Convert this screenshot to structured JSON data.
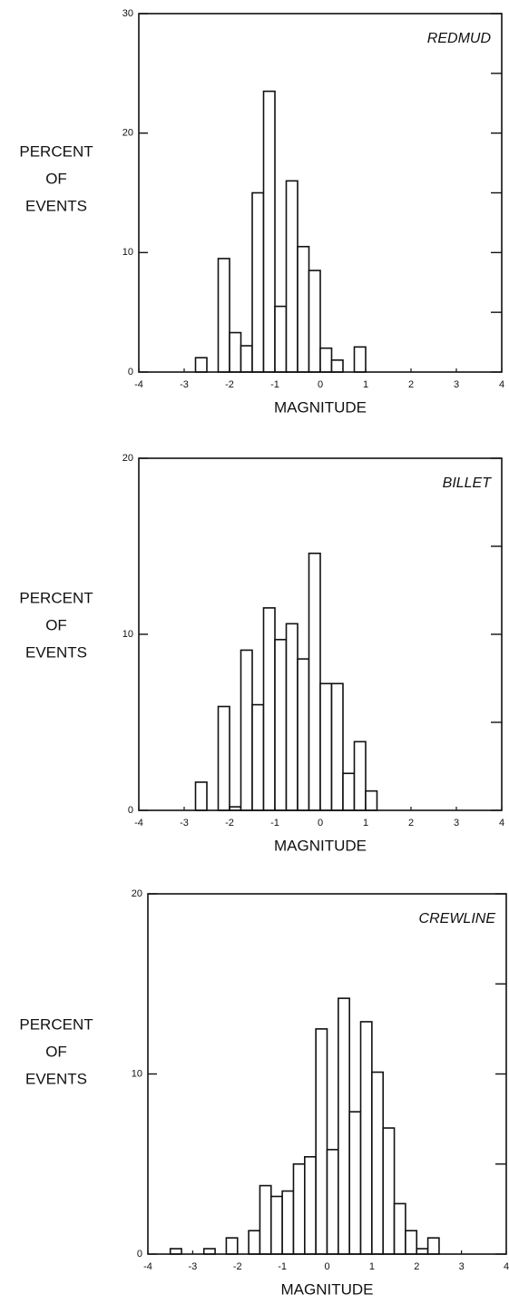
{
  "chart_data": [
    {
      "type": "histogram",
      "title": "REDMUD",
      "x_label": "MAGNITUDE",
      "y_label": [
        "PERCENT",
        "OF",
        "EVENTS"
      ],
      "bins": [
        -2.75,
        -2.5,
        -2.25,
        -2,
        -1.75,
        -1.5,
        -1.25,
        -1,
        -0.75,
        -0.5,
        -0.25,
        0,
        0.25,
        0.5,
        0.75,
        1
      ],
      "counts": [
        1.2,
        0,
        9.5,
        3.3,
        2.2,
        15,
        23.5,
        5.5,
        16,
        10.5,
        8.5,
        2.0,
        1.0,
        0,
        2.1
      ],
      "xlim": [
        -4,
        4
      ],
      "xticks": [
        -4,
        -3,
        -2,
        -1,
        0,
        1,
        2,
        3,
        4
      ],
      "ylim": [
        0,
        30
      ],
      "yticks": [
        0,
        10,
        20,
        30
      ],
      "minor_yticks": [
        5,
        15,
        25
      ],
      "color": "#ffffff"
    },
    {
      "type": "histogram",
      "title": "BILLET",
      "x_label": "MAGNITUDE",
      "y_label": [
        "PERCENT",
        "OF",
        "EVENTS"
      ],
      "bins": [
        -2.75,
        -2.5,
        -2.25,
        -2,
        -1.75,
        -1.5,
        -1.25,
        -1,
        -0.75,
        -0.5,
        -0.25,
        0,
        0.25,
        0.5,
        0.75,
        1,
        1.25
      ],
      "counts": [
        1.6,
        0,
        5.9,
        0.2,
        9.1,
        6,
        11.5,
        9.7,
        10.6,
        8.6,
        14.6,
        7.2,
        7.2,
        2.1,
        3.9,
        1.1
      ],
      "xlim": [
        -4,
        4
      ],
      "xticks": [
        -4,
        -3,
        -2,
        -1,
        0,
        1,
        2,
        3,
        4
      ],
      "ylim": [
        0,
        20
      ],
      "yticks": [
        0,
        10,
        20
      ],
      "minor_yticks": [
        5,
        15
      ],
      "color": "#ffffff"
    },
    {
      "type": "histogram",
      "title": "CREWLINE",
      "x_label": "MAGNITUDE",
      "y_label": [
        "PERCENT",
        "OF",
        "EVENTS"
      ],
      "bins": [
        -3.5,
        -3.25,
        -3,
        -2.75,
        -2.5,
        -2.25,
        -2,
        -1.75,
        -1.5,
        -1.25,
        -1,
        -0.75,
        -0.5,
        -0.25,
        0,
        0.25,
        0.5,
        0.75,
        1,
        1.25,
        1.5,
        1.75,
        2,
        2.25,
        2.5
      ],
      "counts": [
        0.3,
        0,
        0,
        0.3,
        0,
        0.9,
        0,
        1.3,
        3.8,
        3.2,
        3.5,
        5,
        5.4,
        12.5,
        5.8,
        14.2,
        7.9,
        12.9,
        10.1,
        7.0,
        2.8,
        1.3,
        0.3,
        0.9
      ],
      "xlim": [
        -4,
        4
      ],
      "xticks": [
        -4,
        -3,
        -2,
        -1,
        0,
        1,
        2,
        3,
        4
      ],
      "ylim": [
        0,
        20
      ],
      "yticks": [
        0,
        10,
        20
      ],
      "minor_yticks": [
        5,
        15
      ],
      "color": "#ffffff"
    }
  ]
}
